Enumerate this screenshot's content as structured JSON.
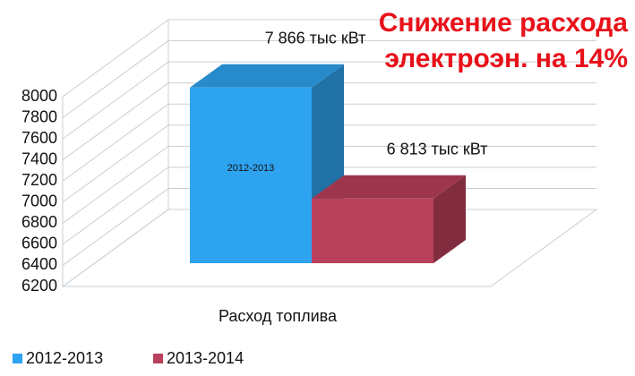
{
  "chart_data": {
    "type": "bar3d",
    "title": "Снижение расхода электроэн. на 14%",
    "categories": [
      "Расход топлива"
    ],
    "series": [
      {
        "name": "2012-2013",
        "color": "#2ea3ef",
        "values": [
          7866
        ],
        "value_labels": [
          "7 866 тыс кВт"
        ]
      },
      {
        "name": "2013-2014",
        "color": "#b9405a",
        "values": [
          6813
        ],
        "value_labels": [
          "6 813 тыс кВт"
        ]
      }
    ],
    "ylim": [
      6200,
      8000
    ],
    "yticks": [
      6200,
      6400,
      6600,
      6800,
      7000,
      7200,
      7400,
      7600,
      7800,
      8000
    ],
    "grid": true,
    "legend": "bottom"
  }
}
